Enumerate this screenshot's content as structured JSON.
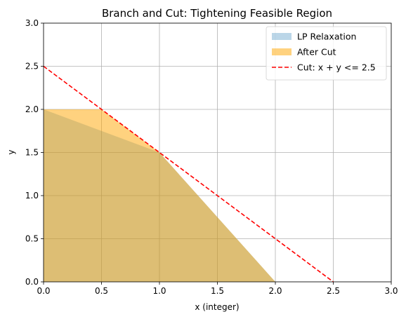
{
  "chart_data": {
    "type": "area",
    "title": "Branch and Cut: Tightening Feasible Region",
    "xlabel": "x (integer)",
    "ylabel": "y",
    "xlim": [
      0,
      3
    ],
    "ylim": [
      0,
      3
    ],
    "xticks": [
      "0.0",
      "0.5",
      "1.0",
      "1.5",
      "2.0",
      "2.5",
      "3.0"
    ],
    "yticks": [
      "0.0",
      "0.5",
      "1.0",
      "1.5",
      "2.0",
      "2.5",
      "3.0"
    ],
    "grid": true,
    "legend_position": "top-right",
    "series": [
      {
        "name": "LP Relaxation",
        "kind": "filled-region",
        "color": "#1f77b4",
        "points": [
          [
            0,
            0
          ],
          [
            0,
            2
          ],
          [
            1,
            1.5
          ],
          [
            2,
            0
          ]
        ]
      },
      {
        "name": "After Cut",
        "kind": "filled-region",
        "color": "#ffa500",
        "points": [
          [
            0,
            0
          ],
          [
            0,
            2
          ],
          [
            0.5,
            2
          ],
          [
            1,
            1.5
          ],
          [
            2,
            0
          ]
        ]
      },
      {
        "name": "Cut: x + y <= 2.5",
        "kind": "dashed-line",
        "color": "#ff0000",
        "points": [
          [
            0,
            2.5
          ],
          [
            2.5,
            0
          ]
        ]
      }
    ]
  }
}
